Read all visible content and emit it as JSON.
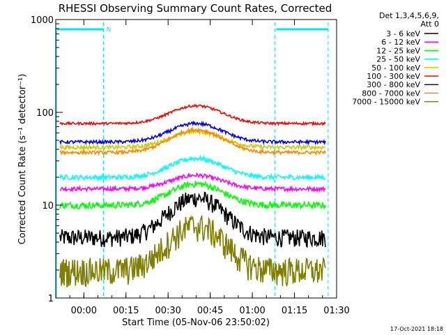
{
  "chart_data": {
    "type": "line",
    "title": "RHESSI Observing Summary Count Rates, Corrected",
    "xlabel": "Start Time (05-Nov-06 23:50:02)",
    "ylabel": "Corrected Count Rate (s⁻¹ detector⁻¹)",
    "y_scale": "log",
    "ylim": [
      1,
      1000
    ],
    "xlim_minutes": [
      -10,
      90
    ],
    "x_ticks": [
      {
        "minute": 0,
        "label": "00:00"
      },
      {
        "minute": 15,
        "label": "00:15"
      },
      {
        "minute": 30,
        "label": "00:30"
      },
      {
        "minute": 45,
        "label": "00:45"
      },
      {
        "minute": 60,
        "label": "01:00"
      },
      {
        "minute": 75,
        "label": "01:15"
      },
      {
        "minute": 90,
        "label": "01:30"
      }
    ],
    "y_ticks": [
      {
        "value": 1,
        "label": "1"
      },
      {
        "value": 10,
        "label": "10"
      },
      {
        "value": 100,
        "label": "100"
      },
      {
        "value": 1000,
        "label": "1000"
      }
    ],
    "legend_header": [
      "Det 1,3,4,5,6,9,",
      "Att 0"
    ],
    "legend_position": "top-right",
    "footer_date": "17-Oct-2021 18:18",
    "night_marks": [
      {
        "start_minute": -10,
        "end_minute": 7,
        "label": "N"
      },
      {
        "start_minute": 68,
        "end_minute": 87,
        "label": ""
      }
    ],
    "series": [
      {
        "name": "3 - 6 keV",
        "color": "#000000",
        "base": 4.5,
        "peak": 12,
        "noise": 0.22
      },
      {
        "name": "6 - 12 keV",
        "color": "#ff00ff",
        "base": 15,
        "peak": 21,
        "noise": 0.05
      },
      {
        "name": "12 - 25 keV",
        "color": "#00ff00",
        "base": 10,
        "peak": 17,
        "noise": 0.08
      },
      {
        "name": "25 - 50 keV",
        "color": "#00ffff",
        "base": 20,
        "peak": 32,
        "noise": 0.06
      },
      {
        "name": "50 - 100 keV",
        "color": "#cccc00",
        "base": 42,
        "peak": 62,
        "noise": 0.05
      },
      {
        "name": "100 - 300 keV",
        "color": "#ff0000",
        "base": 76,
        "peak": 118,
        "noise": 0.03
      },
      {
        "name": "300 - 800 keV",
        "color": "#0000ff",
        "base": 48,
        "peak": 76,
        "noise": 0.04
      },
      {
        "name": "800 - 7000 keV",
        "color": "#ff8800",
        "base": 37,
        "peak": 65,
        "noise": 0.04
      },
      {
        "name": "7000 - 15000 keV",
        "color": "#808000",
        "base": 2,
        "peak": 6,
        "noise": 0.35
      }
    ]
  }
}
